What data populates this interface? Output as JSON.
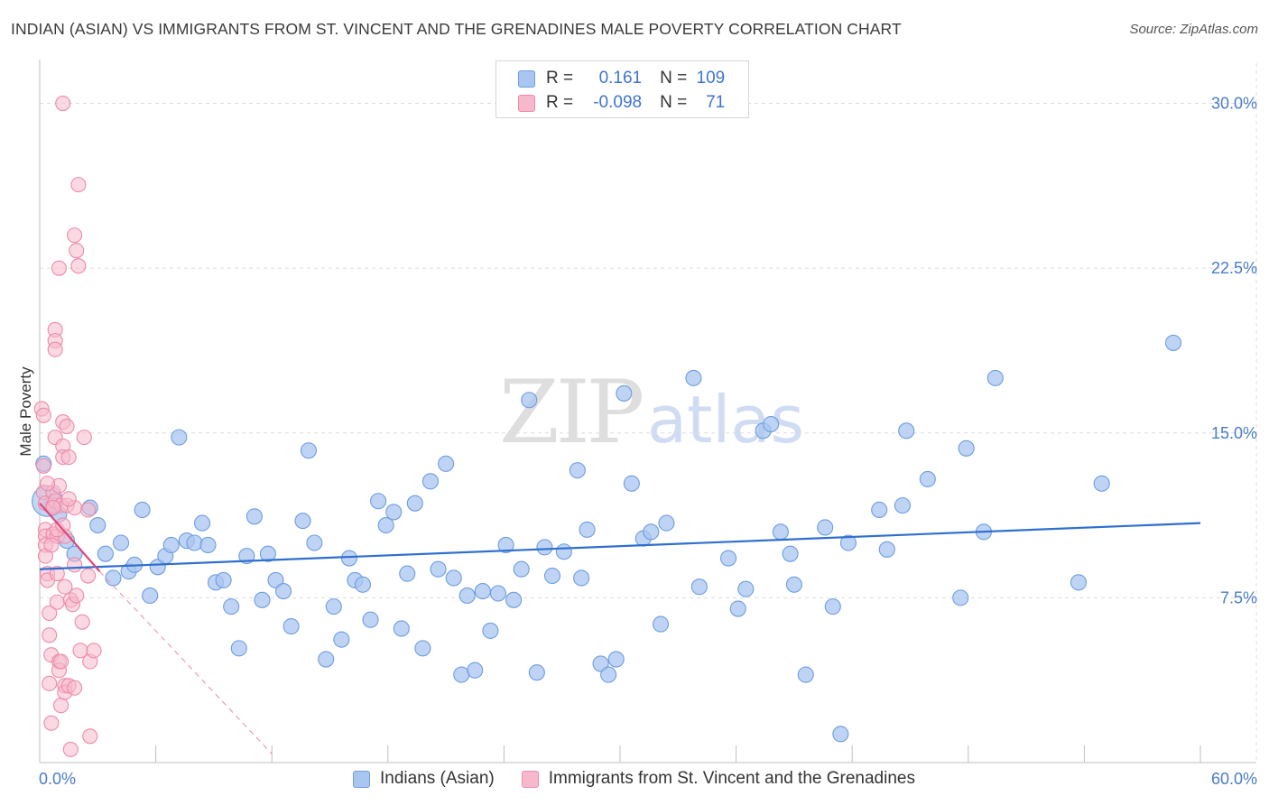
{
  "header": {
    "title": "INDIAN (ASIAN) VS IMMIGRANTS FROM ST. VINCENT AND THE GRENADINES MALE POVERTY CORRELATION CHART",
    "source": "Source: ZipAtlas.com"
  },
  "legend": {
    "series1": {
      "r_label": "R =",
      "r_value": "0.161",
      "n_label": "N =",
      "n_value": "109"
    },
    "series2": {
      "r_label": "R =",
      "r_value": "-0.098",
      "n_label": "N =",
      "n_value": "71"
    }
  },
  "watermark": {
    "zip": "ZIP",
    "atlas": "atlas"
  },
  "colors": {
    "blue_fill": "#a9c6f0",
    "blue_stroke": "#6d9de0",
    "blue_line": "#2f6fcf",
    "pink_fill": "#f6b9cc",
    "pink_stroke": "#ee8aa9",
    "pink_line": "#e0457a",
    "grid": "#dcdcdc",
    "tick_text": "#4a7cc9"
  },
  "chart_data": {
    "type": "scatter",
    "title": "INDIAN (ASIAN) VS IMMIGRANTS FROM ST. VINCENT AND THE GRENADINES MALE POVERTY CORRELATION CHART",
    "xlabel": "",
    "ylabel": "Male Poverty",
    "xlim": [
      0,
      60
    ],
    "ylim": [
      0,
      31.5
    ],
    "x_tick_labels": [
      {
        "value": 0,
        "label": "0.0%"
      },
      {
        "value": 60,
        "label": "60.0%"
      }
    ],
    "y_tick_labels": [
      {
        "value": 7.5,
        "label": "7.5%"
      },
      {
        "value": 15,
        "label": "15.0%"
      },
      {
        "value": 22.5,
        "label": "22.5%"
      },
      {
        "value": 30,
        "label": "30.0%"
      }
    ],
    "grid": true,
    "series": [
      {
        "name": "Indians (Asian)",
        "color": "#a9c6f0",
        "trend": {
          "x0": 0,
          "y0": 8.8,
          "x1": 60,
          "y1": 10.9
        },
        "points": [
          [
            0.2,
            13.6
          ],
          [
            0.6,
            11.8
          ],
          [
            1.0,
            11.3
          ],
          [
            1.4,
            10.1
          ],
          [
            1.8,
            9.5
          ],
          [
            2.6,
            11.6
          ],
          [
            3.0,
            10.8
          ],
          [
            3.4,
            9.5
          ],
          [
            3.8,
            8.4
          ],
          [
            4.2,
            10.0
          ],
          [
            4.6,
            8.7
          ],
          [
            4.9,
            9.0
          ],
          [
            5.3,
            11.5
          ],
          [
            5.7,
            7.6
          ],
          [
            6.1,
            8.9
          ],
          [
            6.5,
            9.4
          ],
          [
            6.8,
            9.9
          ],
          [
            7.2,
            14.8
          ],
          [
            7.6,
            10.1
          ],
          [
            8.0,
            10.0
          ],
          [
            8.4,
            10.9
          ],
          [
            8.7,
            9.9
          ],
          [
            9.1,
            8.2
          ],
          [
            9.5,
            8.3
          ],
          [
            9.9,
            7.1
          ],
          [
            10.3,
            5.2
          ],
          [
            10.7,
            9.4
          ],
          [
            11.1,
            11.2
          ],
          [
            11.5,
            7.4
          ],
          [
            11.8,
            9.5
          ],
          [
            12.2,
            8.3
          ],
          [
            12.6,
            7.8
          ],
          [
            13.0,
            6.2
          ],
          [
            13.6,
            11.0
          ],
          [
            13.9,
            14.2
          ],
          [
            14.2,
            10.0
          ],
          [
            14.8,
            4.7
          ],
          [
            15.2,
            7.1
          ],
          [
            15.6,
            5.6
          ],
          [
            16.0,
            9.3
          ],
          [
            16.3,
            8.3
          ],
          [
            16.7,
            8.1
          ],
          [
            17.1,
            6.5
          ],
          [
            17.5,
            11.9
          ],
          [
            17.9,
            10.8
          ],
          [
            18.3,
            11.4
          ],
          [
            18.7,
            6.1
          ],
          [
            19.0,
            8.6
          ],
          [
            19.4,
            11.8
          ],
          [
            19.8,
            5.2
          ],
          [
            20.2,
            12.8
          ],
          [
            20.6,
            8.8
          ],
          [
            21.0,
            13.6
          ],
          [
            21.4,
            8.4
          ],
          [
            21.8,
            4.0
          ],
          [
            22.1,
            7.6
          ],
          [
            22.5,
            4.2
          ],
          [
            22.9,
            7.8
          ],
          [
            23.3,
            6.0
          ],
          [
            23.7,
            7.7
          ],
          [
            24.1,
            9.9
          ],
          [
            24.5,
            7.4
          ],
          [
            24.9,
            8.8
          ],
          [
            25.3,
            16.5
          ],
          [
            25.7,
            4.1
          ],
          [
            26.1,
            9.8
          ],
          [
            26.5,
            8.5
          ],
          [
            27.1,
            9.6
          ],
          [
            27.8,
            13.3
          ],
          [
            28.0,
            8.4
          ],
          [
            28.3,
            10.6
          ],
          [
            29.0,
            4.5
          ],
          [
            29.4,
            4.0
          ],
          [
            29.8,
            4.7
          ],
          [
            30.2,
            16.8
          ],
          [
            30.6,
            12.7
          ],
          [
            31.2,
            10.2
          ],
          [
            31.6,
            10.5
          ],
          [
            32.1,
            6.3
          ],
          [
            32.4,
            10.9
          ],
          [
            33.8,
            17.5
          ],
          [
            34.1,
            8.0
          ],
          [
            35.6,
            9.3
          ],
          [
            36.1,
            7.0
          ],
          [
            36.5,
            7.9
          ],
          [
            37.4,
            15.1
          ],
          [
            37.8,
            15.4
          ],
          [
            38.3,
            10.5
          ],
          [
            38.8,
            9.5
          ],
          [
            39.0,
            8.1
          ],
          [
            39.6,
            4.0
          ],
          [
            40.6,
            10.7
          ],
          [
            41.0,
            7.1
          ],
          [
            41.4,
            1.3
          ],
          [
            41.8,
            10.0
          ],
          [
            43.4,
            11.5
          ],
          [
            43.8,
            9.7
          ],
          [
            44.6,
            11.7
          ],
          [
            44.8,
            15.1
          ],
          [
            45.9,
            12.9
          ],
          [
            47.6,
            7.5
          ],
          [
            47.9,
            14.3
          ],
          [
            48.8,
            10.5
          ],
          [
            49.4,
            17.5
          ],
          [
            53.7,
            8.2
          ],
          [
            54.9,
            12.7
          ],
          [
            58.6,
            19.1
          ]
        ],
        "large_points": [
          [
            0.4,
            11.9
          ]
        ]
      },
      {
        "name": "Immigrants from St. Vincent and the Grenadines",
        "color": "#f6b9cc",
        "trend": {
          "x0": 0,
          "y0": 11.8,
          "x1": 3.1,
          "y1": 8.7
        },
        "trend_dashed": {
          "x0": 3.1,
          "y0": 8.7,
          "x1": 12.0,
          "y1": 0.4
        },
        "points": [
          [
            0.1,
            16.1
          ],
          [
            0.2,
            15.8
          ],
          [
            0.2,
            12.3
          ],
          [
            0.3,
            11.8
          ],
          [
            0.3,
            10.6
          ],
          [
            0.3,
            10.3
          ],
          [
            0.3,
            9.9
          ],
          [
            0.3,
            9.4
          ],
          [
            0.4,
            8.6
          ],
          [
            0.4,
            8.3
          ],
          [
            0.5,
            6.8
          ],
          [
            0.5,
            5.8
          ],
          [
            0.5,
            3.6
          ],
          [
            0.6,
            1.8
          ],
          [
            0.6,
            4.9
          ],
          [
            0.7,
            12.3
          ],
          [
            0.7,
            11.7
          ],
          [
            0.7,
            10.4
          ],
          [
            0.8,
            19.7
          ],
          [
            0.8,
            19.2
          ],
          [
            0.8,
            18.8
          ],
          [
            0.8,
            14.8
          ],
          [
            0.8,
            11.9
          ],
          [
            0.9,
            10.3
          ],
          [
            0.9,
            8.6
          ],
          [
            0.9,
            7.3
          ],
          [
            1.0,
            22.5
          ],
          [
            1.0,
            4.6
          ],
          [
            1.0,
            4.2
          ],
          [
            1.1,
            11.7
          ],
          [
            1.1,
            4.6
          ],
          [
            1.1,
            2.6
          ],
          [
            1.2,
            30.0
          ],
          [
            1.2,
            15.5
          ],
          [
            1.2,
            14.4
          ],
          [
            1.2,
            13.9
          ],
          [
            1.3,
            10.3
          ],
          [
            1.3,
            8.0
          ],
          [
            1.3,
            3.5
          ],
          [
            1.3,
            3.2
          ],
          [
            1.4,
            15.3
          ],
          [
            1.4,
            11.7
          ],
          [
            1.5,
            13.9
          ],
          [
            1.5,
            3.5
          ],
          [
            1.6,
            0.6
          ],
          [
            1.6,
            7.4
          ],
          [
            1.7,
            7.2
          ],
          [
            1.8,
            24.0
          ],
          [
            1.8,
            11.6
          ],
          [
            1.8,
            9.0
          ],
          [
            1.8,
            3.4
          ],
          [
            1.9,
            23.3
          ],
          [
            1.9,
            7.6
          ],
          [
            2.0,
            26.3
          ],
          [
            2.0,
            22.6
          ],
          [
            2.1,
            5.1
          ],
          [
            2.2,
            6.4
          ],
          [
            2.3,
            14.8
          ],
          [
            2.5,
            11.5
          ],
          [
            2.5,
            8.5
          ],
          [
            2.6,
            4.6
          ],
          [
            2.6,
            1.2
          ],
          [
            2.8,
            5.1
          ],
          [
            1.0,
            12.6
          ],
          [
            0.6,
            9.9
          ],
          [
            0.9,
            10.6
          ],
          [
            1.5,
            12.0
          ],
          [
            0.7,
            11.6
          ],
          [
            0.4,
            12.7
          ],
          [
            1.2,
            10.8
          ],
          [
            0.2,
            13.5
          ]
        ]
      }
    ]
  },
  "bottom_legend": {
    "series1": "Indians (Asian)",
    "series2": "Immigrants from St. Vincent and the Grenadines"
  }
}
